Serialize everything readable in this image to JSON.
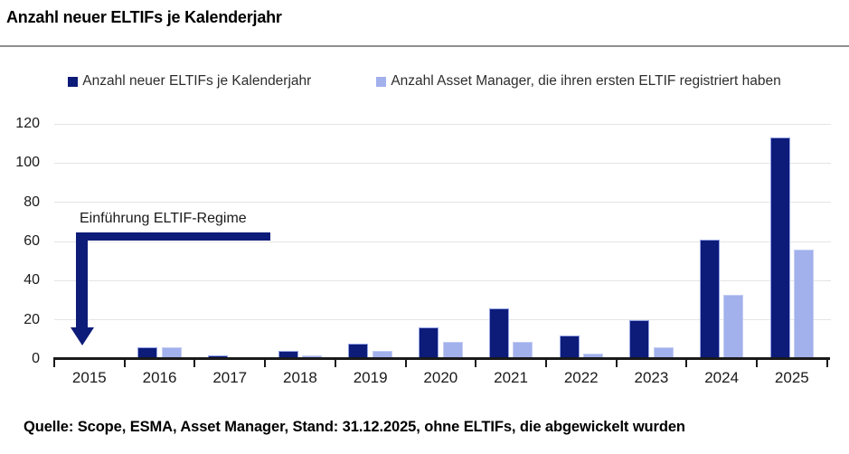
{
  "page": {
    "title": "Anzahl neuer ELTIFs je Kalenderjahr",
    "source_note": "Quelle: Scope, ESMA, Asset Manager, Stand: 31.12.2025, ohne ELTIFs, die abgewickelt wurden"
  },
  "chart_data": {
    "type": "bar",
    "title": "Anzahl neuer ELTIFs je Kalenderjahr",
    "categories": [
      "2015",
      "2016",
      "2017",
      "2018",
      "2019",
      "2020",
      "2021",
      "2022",
      "2023",
      "2024",
      "2025"
    ],
    "series": [
      {
        "name": "Anzahl neuer ELTIFs je Kalenderjahr",
        "color": "#0d1b79",
        "values": [
          0,
          6,
          2,
          4,
          8,
          16,
          26,
          12,
          20,
          61,
          113
        ]
      },
      {
        "name": "Anzahl Asset Manager, die ihren ersten ELTIF registriert haben",
        "color": "#a2b0ec",
        "values": [
          0,
          6,
          1,
          2,
          4,
          9,
          9,
          3,
          6,
          33,
          56
        ]
      }
    ],
    "xlabel": "",
    "ylabel": "",
    "ylim": [
      0,
      120
    ],
    "ytick_step": 20,
    "grid": true,
    "grid_color": "#e4e4e4",
    "legend_position": "top",
    "annotation": {
      "text": "Einführung ELTIF-Regime",
      "target_category": "2015",
      "arrow_color": "#0d1b79"
    }
  }
}
